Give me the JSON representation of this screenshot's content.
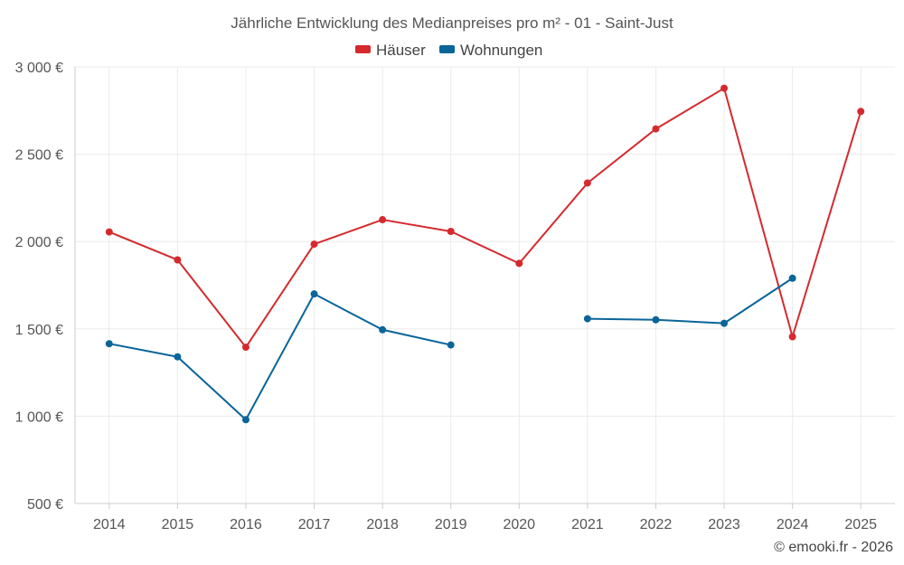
{
  "chart_data": {
    "type": "line",
    "title": "Jährliche Entwicklung des Medianpreises pro m² - 01 - Saint-Just",
    "categories": [
      "2014",
      "2015",
      "2016",
      "2017",
      "2018",
      "2019",
      "2020",
      "2021",
      "2022",
      "2023",
      "2024",
      "2025"
    ],
    "y_ticks": [
      "500 €",
      "1 000 €",
      "1 500 €",
      "2 000 €",
      "2 500 €",
      "3 000 €"
    ],
    "ylim": [
      500,
      3000
    ],
    "legend_position": "top-center",
    "grid": true,
    "series": [
      {
        "name": "Häuser",
        "color": "#d42a2e",
        "values": [
          2055,
          1895,
          1395,
          1985,
          2125,
          2058,
          1875,
          2335,
          2645,
          2878,
          1455,
          2745
        ]
      },
      {
        "name": "Wohnungen",
        "color": "#0a6599",
        "values": [
          1415,
          1340,
          980,
          1700,
          1495,
          1408,
          null,
          1558,
          1552,
          1532,
          1790,
          null
        ]
      }
    ],
    "credit": "© emooki.fr - 2026"
  }
}
